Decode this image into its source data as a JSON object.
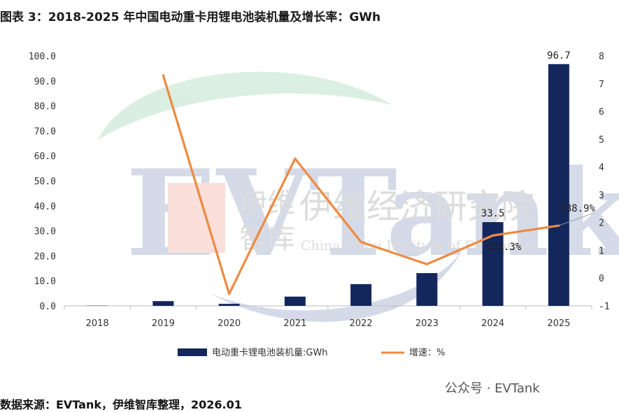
{
  "header": {
    "title": "图表 3：2018-2025 年中国电动重卡用锂电池装机量及增长率：GWh"
  },
  "footer": {
    "source": "数据来源：EVTank，伊维智库整理，2026.01",
    "wechat_account": "公众号 · EVTank"
  },
  "watermark": {
    "big_letters": "EVTank",
    "cn_name_short_1": "伊维",
    "cn_name_short_2": "智库",
    "cn_name_full": "伊维经济研究院",
    "en_name": "China YiWei Institute of Economics"
  },
  "chart_data": {
    "type": "bar",
    "categories": [
      "2018",
      "2019",
      "2020",
      "2021",
      "2022",
      "2023",
      "2024",
      "2025"
    ],
    "series": [
      {
        "name": "电动重卡锂电池装机量:GWh",
        "type": "bar",
        "axis": "left",
        "color": "#14275c",
        "values": [
          0.1,
          1.9,
          0.8,
          3.7,
          8.7,
          13.1,
          33.5,
          96.7
        ]
      },
      {
        "name": "增速：%",
        "type": "line",
        "axis": "right",
        "color": "#ee8a3f",
        "values": [
          null,
          7.3,
          -0.57,
          4.3,
          1.3,
          0.5,
          1.533,
          1.889
        ]
      }
    ],
    "data_labels": [
      {
        "series": 0,
        "index": 6,
        "text": "33.5"
      },
      {
        "series": 0,
        "index": 7,
        "text": "96.7"
      },
      {
        "series": 1,
        "index": 6,
        "text": "153.3%"
      },
      {
        "series": 1,
        "index": 7,
        "text": "188.9%"
      }
    ],
    "y_left": {
      "min": 0,
      "max": 100,
      "ticks": [
        "0.0",
        "10.0",
        "20.0",
        "30.0",
        "40.0",
        "50.0",
        "60.0",
        "70.0",
        "80.0",
        "90.0",
        "100.0"
      ]
    },
    "y_right": {
      "min": -1,
      "max": 8,
      "ticks": [
        "-1",
        "0",
        "1",
        "2",
        "3",
        "4",
        "5",
        "6",
        "7",
        "8"
      ]
    },
    "grid": false,
    "legend_position": "bottom"
  }
}
